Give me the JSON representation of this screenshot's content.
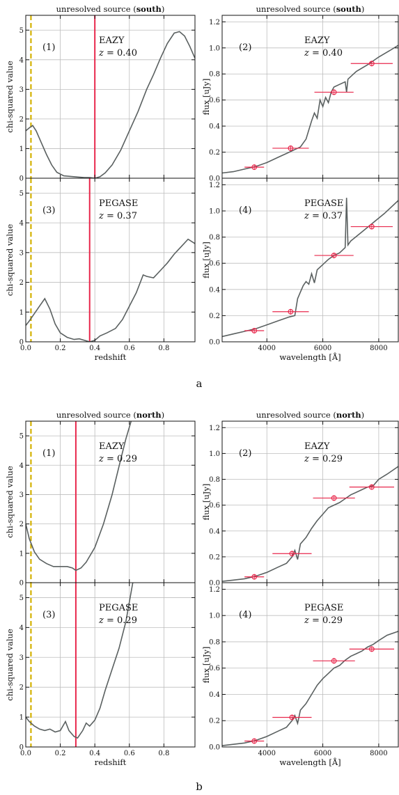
{
  "figure": {
    "panel_labels": [
      "a",
      "b"
    ],
    "colors": {
      "model_curve": "#5a6060",
      "best_fit_line": "#e8274b",
      "photometry": "#e8274b",
      "reference_line": "#d4b100",
      "grid": "#bdbdbd",
      "axes": "#111111"
    }
  },
  "chart_data": [
    {
      "id": "a1",
      "type": "line",
      "block": "a",
      "col": 0,
      "row": 0,
      "title_prefix": "unresolved source (",
      "title_bold": "south",
      "title_suffix": ")",
      "ylabel": "chi-squared value",
      "xlabel": "",
      "xlim": [
        0,
        0.98
      ],
      "ylim": [
        0,
        5.5
      ],
      "xticks": [
        0,
        0.2,
        0.4,
        0.6,
        0.8
      ],
      "xtick_labels": [],
      "yticks": [
        0,
        1,
        2,
        3,
        4,
        5
      ],
      "ytick_labels": [
        "0",
        "1",
        "2",
        "3",
        "4",
        "5"
      ],
      "panel_number": "(1)",
      "template": "EAZY",
      "z_label": "z = 0.40",
      "best_z": 0.4,
      "reference_z": 0.03,
      "series": [
        {
          "x": [
            0,
            0.02,
            0.04,
            0.06,
            0.09,
            0.12,
            0.15,
            0.18,
            0.22,
            0.26,
            0.3,
            0.34,
            0.37,
            0.4,
            0.43,
            0.46,
            0.5,
            0.55,
            0.6,
            0.65,
            0.7,
            0.74,
            0.78,
            0.82,
            0.86,
            0.89,
            0.92,
            0.95,
            0.98
          ],
          "y": [
            1.6,
            1.7,
            1.78,
            1.6,
            1.2,
            0.8,
            0.45,
            0.2,
            0.08,
            0.06,
            0.04,
            0.02,
            0.02,
            0.0,
            0.05,
            0.18,
            0.45,
            0.95,
            1.6,
            2.25,
            3.0,
            3.5,
            4.05,
            4.55,
            4.9,
            4.95,
            4.8,
            4.45,
            4.05
          ]
        }
      ]
    },
    {
      "id": "a2",
      "type": "line",
      "block": "a",
      "col": 1,
      "row": 0,
      "title_prefix": "unresolved source (",
      "title_bold": "south",
      "title_suffix": ")",
      "ylabel": "flux [uJy]",
      "xlabel": "",
      "xlim": [
        2400,
        8700
      ],
      "ylim": [
        0,
        1.25
      ],
      "xticks": [
        4000,
        6000,
        8000
      ],
      "xtick_labels": [],
      "yticks": [
        0,
        0.2,
        0.4,
        0.6,
        0.8,
        1.0,
        1.2
      ],
      "ytick_labels": [
        "0.0",
        "0.2",
        "0.4",
        "0.6",
        "0.8",
        "1.0",
        "1.2"
      ],
      "panel_number": "(2)",
      "template": "EAZY",
      "z_label": "z = 0.40",
      "series": [
        {
          "x": [
            2400,
            2800,
            3200,
            3600,
            4000,
            4400,
            4800,
            5000,
            5200,
            5400,
            5500,
            5600,
            5700,
            5800,
            5900,
            6000,
            6100,
            6200,
            6300,
            6400,
            6600,
            6800,
            6850,
            6900,
            7200,
            7600,
            8000,
            8400,
            8700
          ],
          "y": [
            0.04,
            0.05,
            0.07,
            0.09,
            0.12,
            0.16,
            0.2,
            0.22,
            0.24,
            0.3,
            0.37,
            0.44,
            0.5,
            0.46,
            0.6,
            0.55,
            0.62,
            0.58,
            0.66,
            0.7,
            0.72,
            0.74,
            0.66,
            0.76,
            0.82,
            0.87,
            0.93,
            0.98,
            1.02
          ]
        }
      ],
      "photometry": [
        {
          "x": 3550,
          "y": 0.085,
          "xerr": 350
        },
        {
          "x": 4850,
          "y": 0.23,
          "xerr": 650
        },
        {
          "x": 6400,
          "y": 0.66,
          "xerr": 700
        },
        {
          "x": 7750,
          "y": 0.88,
          "xerr": 750
        }
      ]
    },
    {
      "id": "a3",
      "type": "line",
      "block": "a",
      "col": 0,
      "row": 1,
      "ylabel": "chi-squared value",
      "xlabel": "redshift",
      "xlim": [
        0,
        0.98
      ],
      "ylim": [
        0,
        5.5
      ],
      "xticks": [
        0,
        0.2,
        0.4,
        0.6,
        0.8
      ],
      "xtick_labels": [
        "0.0",
        "0.2",
        "0.4",
        "0.6",
        "0.8"
      ],
      "yticks": [
        0,
        1,
        2,
        3,
        4,
        5
      ],
      "ytick_labels": [
        "0",
        "1",
        "2",
        "3",
        "4",
        "5"
      ],
      "panel_number": "(3)",
      "template": "PEGASE",
      "z_label": "z = 0.37",
      "best_z": 0.37,
      "reference_z": 0.03,
      "series": [
        {
          "x": [
            0,
            0.02,
            0.05,
            0.08,
            0.11,
            0.14,
            0.17,
            0.2,
            0.24,
            0.28,
            0.31,
            0.34,
            0.37,
            0.4,
            0.43,
            0.47,
            0.52,
            0.56,
            0.6,
            0.64,
            0.68,
            0.7,
            0.74,
            0.78,
            0.82,
            0.86,
            0.9,
            0.94,
            0.98
          ],
          "y": [
            0.55,
            0.7,
            0.95,
            1.2,
            1.45,
            1.1,
            0.6,
            0.3,
            0.15,
            0.08,
            0.1,
            0.05,
            0.0,
            0.05,
            0.2,
            0.3,
            0.45,
            0.75,
            1.2,
            1.65,
            2.25,
            2.2,
            2.15,
            2.4,
            2.65,
            2.95,
            3.2,
            3.45,
            3.3
          ]
        }
      ]
    },
    {
      "id": "a4",
      "type": "line",
      "block": "a",
      "col": 1,
      "row": 1,
      "ylabel": "flux [uJy]",
      "xlabel": "wavelength [Å]",
      "xlim": [
        2400,
        8700
      ],
      "ylim": [
        0,
        1.25
      ],
      "xticks": [
        4000,
        6000,
        8000
      ],
      "xtick_labels": [
        "4000",
        "6000",
        "8000"
      ],
      "yticks": [
        0,
        0.2,
        0.4,
        0.6,
        0.8,
        1.0,
        1.2
      ],
      "ytick_labels": [
        "0.0",
        "0.2",
        "0.4",
        "0.6",
        "0.8",
        "1.0",
        "1.2"
      ],
      "panel_number": "(4)",
      "template": "PEGASE",
      "z_label": "z = 0.37",
      "series": [
        {
          "x": [
            2400,
            2800,
            3200,
            3600,
            4000,
            4400,
            4800,
            5000,
            5100,
            5200,
            5300,
            5400,
            5500,
            5600,
            5700,
            5800,
            6000,
            6200,
            6400,
            6600,
            6700,
            6800,
            6850,
            6900,
            7000,
            7400,
            7800,
            8200,
            8700
          ],
          "y": [
            0.04,
            0.06,
            0.08,
            0.1,
            0.13,
            0.16,
            0.19,
            0.2,
            0.33,
            0.38,
            0.43,
            0.46,
            0.44,
            0.52,
            0.45,
            0.55,
            0.59,
            0.63,
            0.66,
            0.68,
            0.7,
            0.72,
            1.1,
            0.74,
            0.77,
            0.84,
            0.91,
            0.98,
            1.08
          ]
        }
      ],
      "photometry": [
        {
          "x": 3550,
          "y": 0.085,
          "xerr": 350
        },
        {
          "x": 4850,
          "y": 0.23,
          "xerr": 650
        },
        {
          "x": 6400,
          "y": 0.66,
          "xerr": 700
        },
        {
          "x": 7750,
          "y": 0.88,
          "xerr": 750
        }
      ]
    },
    {
      "id": "b1",
      "type": "line",
      "block": "b",
      "col": 0,
      "row": 0,
      "title_prefix": "unresolved source (",
      "title_bold": "north",
      "title_suffix": ")",
      "ylabel": "chi-squared value",
      "xlabel": "",
      "xlim": [
        0,
        0.98
      ],
      "ylim": [
        0,
        5.5
      ],
      "xticks": [
        0,
        0.2,
        0.4,
        0.6,
        0.8
      ],
      "xtick_labels": [],
      "yticks": [
        0,
        1,
        2,
        3,
        4,
        5
      ],
      "ytick_labels": [
        "0",
        "1",
        "2",
        "3",
        "4",
        "5"
      ],
      "panel_number": "(1)",
      "template": "EAZY",
      "z_label": "z = 0.29",
      "best_z": 0.29,
      "reference_z": 0.03,
      "series": [
        {
          "x": [
            0,
            0.02,
            0.05,
            0.08,
            0.12,
            0.16,
            0.2,
            0.24,
            0.27,
            0.29,
            0.32,
            0.35,
            0.4,
            0.45,
            0.5,
            0.55,
            0.58,
            0.61
          ],
          "y": [
            2.0,
            1.5,
            1.05,
            0.8,
            0.65,
            0.55,
            0.55,
            0.55,
            0.5,
            0.42,
            0.5,
            0.7,
            1.2,
            2.0,
            3.0,
            4.2,
            4.9,
            5.5
          ]
        }
      ]
    },
    {
      "id": "b2",
      "type": "line",
      "block": "b",
      "col": 1,
      "row": 0,
      "title_prefix": "unresolved source (",
      "title_bold": "north",
      "title_suffix": ")",
      "ylabel": "flux [uJy]",
      "xlabel": "",
      "xlim": [
        2400,
        8700
      ],
      "ylim": [
        0,
        1.25
      ],
      "xticks": [
        4000,
        6000,
        8000
      ],
      "xtick_labels": [],
      "yticks": [
        0,
        0.2,
        0.4,
        0.6,
        0.8,
        1.0,
        1.2
      ],
      "ytick_labels": [
        "0.0",
        "0.2",
        "0.4",
        "0.6",
        "0.8",
        "1.0",
        "1.2"
      ],
      "panel_number": "(2)",
      "template": "EAZY",
      "z_label": "z = 0.29",
      "series": [
        {
          "x": [
            2400,
            2800,
            3200,
            3600,
            4000,
            4400,
            4700,
            4900,
            5000,
            5100,
            5200,
            5400,
            5600,
            5800,
            6000,
            6200,
            6400,
            6600,
            6800,
            7000,
            7200,
            7400,
            7600,
            7800,
            8000,
            8300,
            8700
          ],
          "y": [
            0.01,
            0.02,
            0.03,
            0.05,
            0.08,
            0.12,
            0.15,
            0.2,
            0.25,
            0.18,
            0.3,
            0.35,
            0.42,
            0.48,
            0.53,
            0.58,
            0.6,
            0.62,
            0.65,
            0.68,
            0.7,
            0.72,
            0.74,
            0.75,
            0.8,
            0.84,
            0.9
          ]
        }
      ],
      "photometry": [
        {
          "x": 3550,
          "y": 0.045,
          "xerr": 350
        },
        {
          "x": 4900,
          "y": 0.225,
          "xerr": 700
        },
        {
          "x": 6400,
          "y": 0.655,
          "xerr": 750
        },
        {
          "x": 7750,
          "y": 0.74,
          "xerr": 800
        }
      ]
    },
    {
      "id": "b3",
      "type": "line",
      "block": "b",
      "col": 0,
      "row": 1,
      "ylabel": "chi-squared value",
      "xlabel": "redshift",
      "xlim": [
        0,
        0.98
      ],
      "ylim": [
        0,
        5.5
      ],
      "xticks": [
        0,
        0.2,
        0.4,
        0.6,
        0.8
      ],
      "xtick_labels": [
        "0.0",
        "0.2",
        "0.4",
        "0.6",
        "0.8"
      ],
      "yticks": [
        0,
        1,
        2,
        3,
        4,
        5
      ],
      "ytick_labels": [
        "0",
        "1",
        "2",
        "3",
        "4",
        "5"
      ],
      "panel_number": "(3)",
      "template": "PEGASE",
      "z_label": "z = 0.29",
      "best_z": 0.29,
      "reference_z": 0.03,
      "series": [
        {
          "x": [
            0,
            0.02,
            0.05,
            0.08,
            0.11,
            0.14,
            0.17,
            0.2,
            0.23,
            0.25,
            0.28,
            0.3,
            0.33,
            0.35,
            0.37,
            0.4,
            0.43,
            0.46,
            0.5,
            0.54,
            0.58,
            0.62
          ],
          "y": [
            1.0,
            0.85,
            0.7,
            0.6,
            0.55,
            0.6,
            0.5,
            0.55,
            0.85,
            0.55,
            0.35,
            0.3,
            0.55,
            0.8,
            0.7,
            0.9,
            1.3,
            1.9,
            2.6,
            3.3,
            4.2,
            5.5
          ]
        }
      ]
    },
    {
      "id": "b4",
      "type": "line",
      "block": "b",
      "col": 1,
      "row": 1,
      "ylabel": "flux [uJy]",
      "xlabel": "wavelength [Å]",
      "xlim": [
        2400,
        8700
      ],
      "ylim": [
        0,
        1.25
      ],
      "xticks": [
        4000,
        6000,
        8000
      ],
      "xtick_labels": [
        "4000",
        "6000",
        "8000"
      ],
      "yticks": [
        0,
        0.2,
        0.4,
        0.6,
        0.8,
        1.0,
        1.2
      ],
      "ytick_labels": [
        "0.0",
        "0.2",
        "0.4",
        "0.6",
        "0.8",
        "1.0",
        "1.2"
      ],
      "panel_number": "(4)",
      "template": "PEGASE",
      "z_label": "z = 0.29",
      "series": [
        {
          "x": [
            2400,
            2800,
            3200,
            3600,
            4000,
            4400,
            4700,
            4900,
            5000,
            5100,
            5200,
            5400,
            5600,
            5800,
            6000,
            6200,
            6400,
            6600,
            6800,
            7000,
            7200,
            7400,
            7600,
            7800,
            8000,
            8300,
            8700
          ],
          "y": [
            0.01,
            0.02,
            0.03,
            0.05,
            0.08,
            0.12,
            0.15,
            0.2,
            0.24,
            0.18,
            0.28,
            0.33,
            0.4,
            0.47,
            0.52,
            0.56,
            0.6,
            0.62,
            0.66,
            0.69,
            0.71,
            0.73,
            0.76,
            0.78,
            0.81,
            0.85,
            0.88
          ]
        }
      ],
      "photometry": [
        {
          "x": 3550,
          "y": 0.045,
          "xerr": 350
        },
        {
          "x": 4900,
          "y": 0.225,
          "xerr": 700
        },
        {
          "x": 6400,
          "y": 0.655,
          "xerr": 750
        },
        {
          "x": 7750,
          "y": 0.745,
          "xerr": 800
        }
      ]
    }
  ]
}
